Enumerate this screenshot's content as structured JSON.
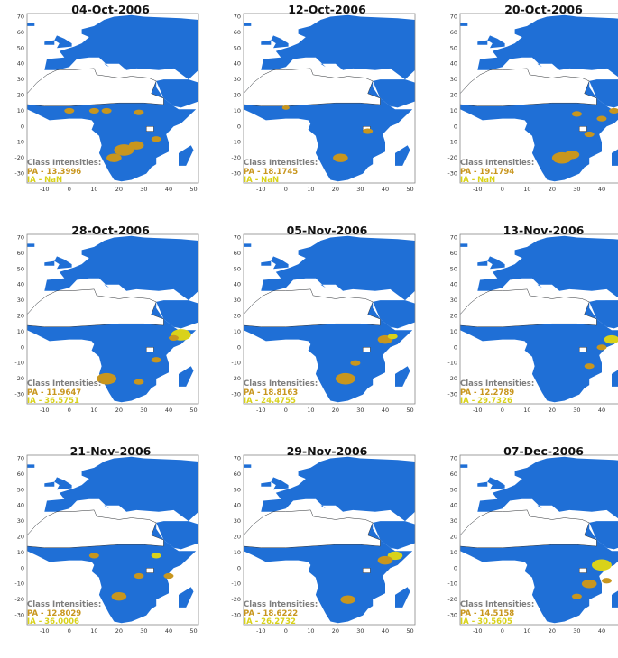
{
  "colors": {
    "land": "#1f6fd6",
    "pa": "#c8961e",
    "ia": "#d9d21a",
    "legend_header": "#7f7f7f"
  },
  "axes": {
    "x_ticks": [
      "-10",
      "0",
      "10",
      "20",
      "30",
      "40",
      "50"
    ],
    "y_ticks": [
      "70",
      "60",
      "50",
      "40",
      "30",
      "20",
      "10",
      "0",
      "-10",
      "-20",
      "-30"
    ]
  },
  "panels": [
    {
      "title": "04-Oct-2006",
      "legend_header": "Class Intensities:",
      "pa": "PA - 13.3996",
      "ia": "IA - NaN"
    },
    {
      "title": "12-Oct-2006",
      "legend_header": "Class Intensities:",
      "pa": "PA - 18.1745",
      "ia": "IA - NaN"
    },
    {
      "title": "20-Oct-2006",
      "legend_header": "Class Intensities:",
      "pa": "PA - 19.1794",
      "ia": "IA - NaN"
    },
    {
      "title": "28-Oct-2006",
      "legend_header": "Class Intensities:",
      "pa": "PA - 11.9647",
      "ia": "IA - 36.5751"
    },
    {
      "title": "05-Nov-2006",
      "legend_header": "Class Intensities:",
      "pa": "PA - 18.8163",
      "ia": "IA - 24.4755"
    },
    {
      "title": "13-Nov-2006",
      "legend_header": "Class Intensities:",
      "pa": "PA - 12.2789",
      "ia": "IA - 29.7326"
    },
    {
      "title": "21-Nov-2006",
      "legend_header": "Class Intensities:",
      "pa": "PA - 12.8029",
      "ia": "IA - 36.0006"
    },
    {
      "title": "29-Nov-2006",
      "legend_header": "Class Intensities:",
      "pa": "PA - 18.6222",
      "ia": "IA - 26.2732"
    },
    {
      "title": "07-Dec-2006",
      "legend_header": "Class Intensities:",
      "pa": "PA - 14.5158",
      "ia": "IA - 30.5605"
    }
  ]
}
